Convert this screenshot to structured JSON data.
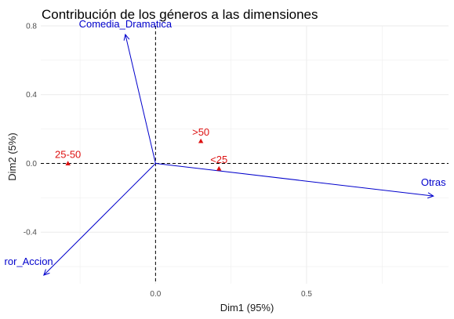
{
  "chart_data": {
    "type": "scatter",
    "title": "Contribución de los géneros a las dimensiones",
    "xlabel": "Dim1 (95%)",
    "ylabel": "Dim2 (5%)",
    "xlim": [
      -0.38,
      0.97
    ],
    "ylim": [
      -0.7,
      0.8
    ],
    "x_ticks": [
      0.0,
      0.5
    ],
    "x_tick_labels": [
      "0.0",
      "0.5"
    ],
    "y_ticks": [
      -0.4,
      0.0,
      0.4,
      0.8
    ],
    "y_tick_labels": [
      "-0.4",
      "0.0",
      "0.4",
      "0.8"
    ],
    "grid": true,
    "reference_lines": {
      "x": 0,
      "y": 0,
      "style": "dashed"
    },
    "colors": {
      "variables": "#0000cc",
      "points": "#dd1111",
      "reference": "#000000",
      "grid": "#ebebeb"
    },
    "variables": [
      {
        "name": "Comedia_Dramatica",
        "x": -0.1,
        "y": 0.75,
        "label_x": -0.1,
        "label_y": 0.79
      },
      {
        "name": "Otras",
        "x": 0.92,
        "y": -0.19,
        "label_x": 0.92,
        "label_y": -0.13
      },
      {
        "name": "ror_Accion",
        "x": -0.37,
        "y": -0.65,
        "label_x": -0.42,
        "label_y": -0.59
      }
    ],
    "points": [
      {
        "name": ">50",
        "x": 0.15,
        "y": 0.13
      },
      {
        "name": "<25",
        "x": 0.21,
        "y": -0.03
      },
      {
        "name": "25-50",
        "x": -0.29,
        "y": 0.0
      }
    ]
  }
}
